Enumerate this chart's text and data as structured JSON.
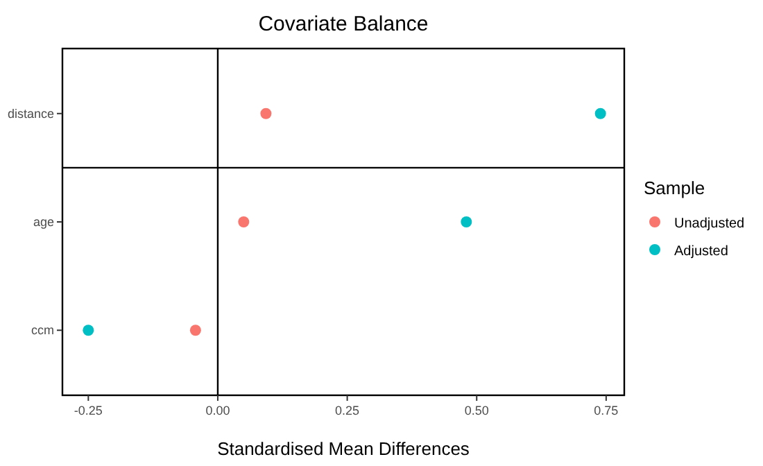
{
  "chart_data": {
    "type": "scatter",
    "title": "Covariate Balance",
    "xlabel": "Standardised Mean Differences",
    "orientation": "horizontal",
    "categories": [
      "distance",
      "age",
      "ccm"
    ],
    "series": [
      {
        "name": "Unadjusted",
        "color": "#f8766d",
        "values": [
          0.093,
          0.05,
          -0.043
        ]
      },
      {
        "name": "Adjusted",
        "color": "#00bfc4",
        "values": [
          0.739,
          0.48,
          -0.25
        ]
      }
    ],
    "xlim": [
      -0.3,
      0.785
    ],
    "xticks": [
      {
        "value": -0.25,
        "label": "-0.25"
      },
      {
        "value": 0,
        "label": "0.00"
      },
      {
        "value": 0.25,
        "label": "0.25"
      },
      {
        "value": 0.5,
        "label": "0.50"
      },
      {
        "value": 0.75,
        "label": "0.75"
      }
    ],
    "ref_lines": [
      {
        "axis": "x",
        "value": 0
      },
      {
        "axis": "y",
        "value": "distance"
      }
    ],
    "legend": "right",
    "legend_title": "Sample",
    "marker": "circle",
    "grid": false
  }
}
